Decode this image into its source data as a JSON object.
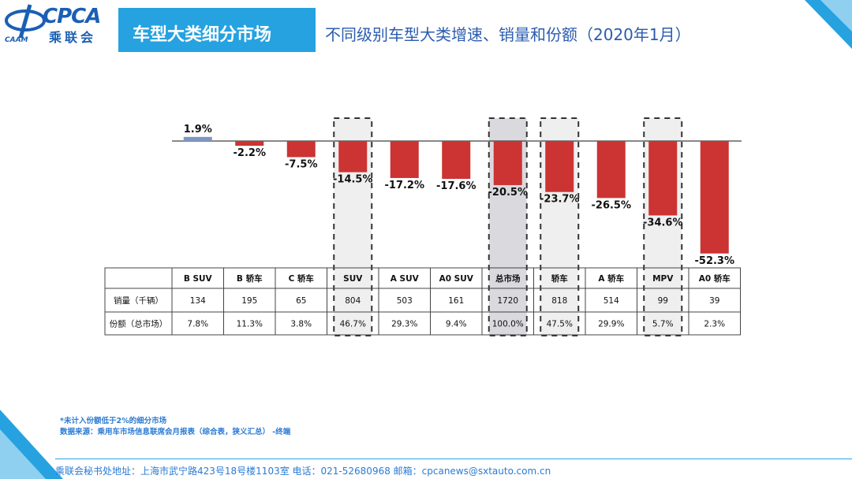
{
  "header": {
    "logo_text": "CPCA",
    "logo_cn": "乘联会",
    "logo_small": "CAAM",
    "title": "车型大类细分市场",
    "subtitle": "不同级别车型大类增速、销量和份额（2020年1月）"
  },
  "colors": {
    "accent": "#26a2e0",
    "positive_bar": "#7f96c0",
    "negative_bar": "#cc3333",
    "highlight_box": "#efefef",
    "highlight_box_dark": "#d9d9de",
    "text_blue": "#2b7bd3"
  },
  "chart_data": {
    "type": "bar",
    "title": "不同级别车型大类增速、销量和份额（2020年1月）",
    "categories": [
      "B SUV",
      "B 轿车",
      "C 轿车",
      "SUV",
      "A SUV",
      "A0 SUV",
      "总市场",
      "轿车",
      "A 轿车",
      "MPV",
      "A0 轿车"
    ],
    "values": [
      1.9,
      -2.2,
      -7.5,
      -14.5,
      -17.2,
      -17.6,
      -20.5,
      -23.7,
      -26.5,
      -34.6,
      -52.3
    ],
    "labels": [
      "1.9%",
      "-2.2%",
      "-7.5%",
      "-14.5%",
      "-17.2%",
      "-17.6%",
      "-20.5%",
      "-23.7%",
      "-26.5%",
      "-34.6%",
      "-52.3%"
    ],
    "ylim": [
      -52.3,
      1.9
    ],
    "highlighted": [
      "SUV",
      "总市场",
      "轿车",
      "MPV"
    ],
    "table": {
      "row_headers": [
        "销量（千辆）",
        "份额（总市场）"
      ],
      "sales": [
        "134",
        "195",
        "65",
        "804",
        "503",
        "161",
        "1720",
        "818",
        "514",
        "99",
        "39"
      ],
      "share": [
        "7.8%",
        "11.3%",
        "3.8%",
        "46.7%",
        "29.3%",
        "9.4%",
        "100.0%",
        "47.5%",
        "29.9%",
        "5.7%",
        "2.3%"
      ]
    }
  },
  "notes": {
    "note1": "*未计入份额低于2%的细分市场",
    "note2": "数据来源：乘用车市场信息联席会月报表（综合表，狭义汇总）    -终端"
  },
  "footer": {
    "text": "乘联会秘书处地址：上海市武宁路423号18号楼1103室  电话：021-52680968   邮箱：cpcanews@sxtauto.com.cn"
  }
}
